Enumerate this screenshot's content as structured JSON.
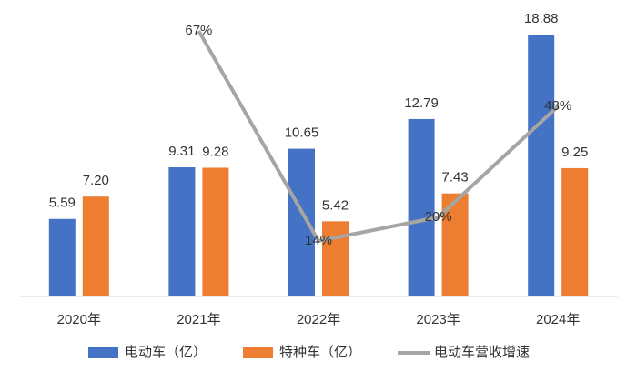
{
  "chart_data": {
    "type": "bar",
    "categories": [
      "2020年",
      "2021年",
      "2022年",
      "2023年",
      "2024年"
    ],
    "series": [
      {
        "name": "电动车（亿）",
        "color": "#4472c4",
        "values": [
          5.59,
          9.31,
          10.65,
          12.79,
          18.88
        ],
        "value_labels": [
          "5.59",
          "9.31",
          "10.65",
          "12.79",
          "18.88"
        ]
      },
      {
        "name": "特种车（亿）",
        "color": "#ed7d31",
        "values": [
          7.2,
          9.28,
          5.42,
          7.43,
          9.25
        ],
        "value_labels": [
          "7.20",
          "9.28",
          "5.42",
          "7.43",
          "9.25"
        ]
      },
      {
        "name": "电动车营收增速",
        "color": "#a5a5a5",
        "type": "line",
        "axis": "y2",
        "values": [
          null,
          67,
          14,
          20,
          48
        ],
        "value_labels": [
          null,
          "67%",
          "14%",
          "20%",
          "48%"
        ]
      }
    ],
    "ylim": [
      0,
      20
    ],
    "y2lim": [
      0,
      70
    ],
    "legend": "bottom"
  }
}
